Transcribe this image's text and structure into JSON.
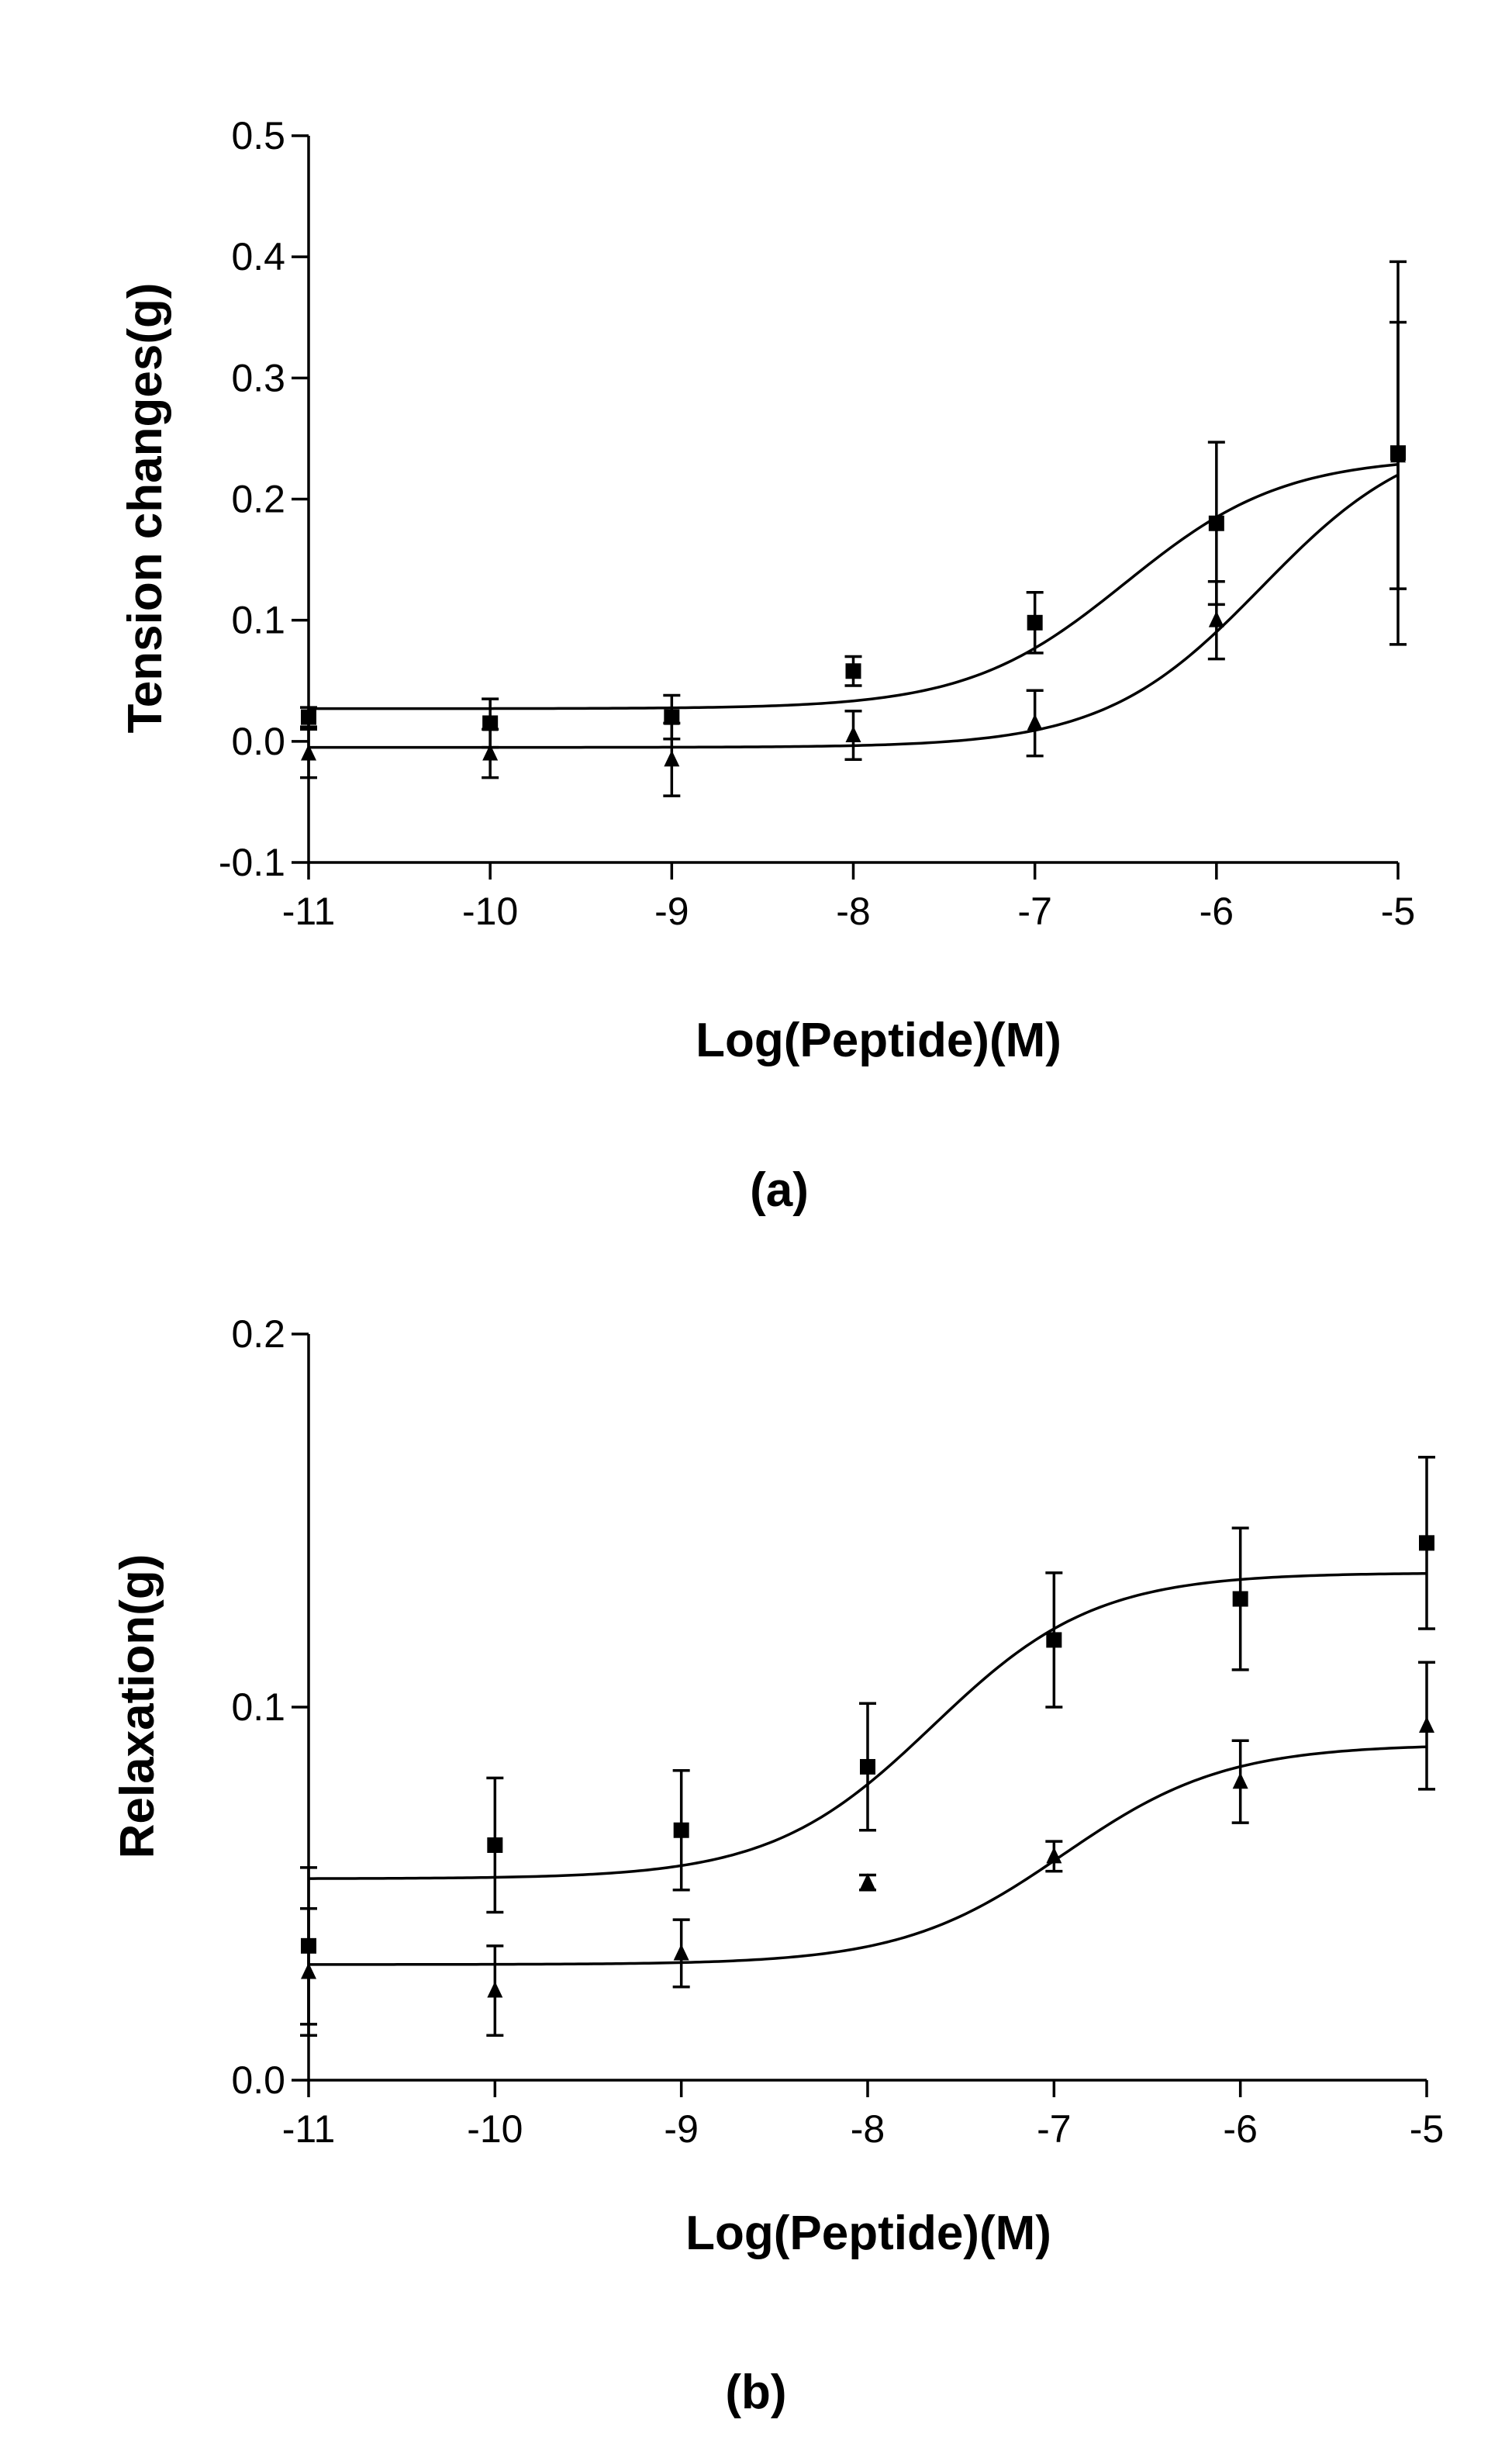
{
  "chart_data": [
    {
      "type": "scatter",
      "panel_label": "(a)",
      "xlabel": "Log(Peptide)(M)",
      "ylabel": "Tension changes(g)",
      "xlim": [
        -11,
        -5
      ],
      "ylim": [
        -0.1,
        0.5
      ],
      "xticks": [
        -11,
        -10,
        -9,
        -8,
        -7,
        -6,
        -5
      ],
      "xtick_labels": [
        "-11",
        "-10",
        "-9",
        "-8",
        "-7",
        "-6",
        "-5"
      ],
      "yticks": [
        -0.1,
        0.0,
        0.1,
        0.2,
        0.3,
        0.4,
        0.5
      ],
      "ytick_labels": [
        "-0.1",
        "0.0",
        "0.1",
        "0.2",
        "0.3",
        "0.4",
        "0.5"
      ],
      "grid": false,
      "series": [
        {
          "name": "square",
          "marker": "square",
          "x": [
            -11,
            -10,
            -9,
            -8,
            -7,
            -6,
            -5
          ],
          "y": [
            0.02,
            0.015,
            0.02,
            0.058,
            0.098,
            0.18,
            0.238
          ],
          "err": [
            0.008,
            0.02,
            0.018,
            0.012,
            0.025,
            0.067,
            0.158
          ],
          "fit": {
            "bottom": 0.027,
            "top": 0.235,
            "logEC50": -6.5,
            "hill": 1.0
          }
        },
        {
          "name": "triangle",
          "marker": "triangle",
          "x": [
            -11,
            -10,
            -9,
            -8,
            -7,
            -6,
            -5
          ],
          "y": [
            -0.01,
            -0.01,
            -0.015,
            0.005,
            0.015,
            0.1,
            0.236
          ],
          "err": [
            0.02,
            0.02,
            0.03,
            0.02,
            0.027,
            0.032,
            0.11
          ],
          "fit": {
            "bottom": -0.005,
            "top": 0.26,
            "logEC50": -5.75,
            "hill": 1.0
          }
        }
      ]
    },
    {
      "type": "scatter",
      "panel_label": "(b)",
      "xlabel": "Log(Peptide)(M)",
      "ylabel": "Relaxation(g)",
      "xlim": [
        -11,
        -5
      ],
      "ylim": [
        0.0,
        0.2
      ],
      "xticks": [
        -11,
        -10,
        -9,
        -8,
        -7,
        -6,
        -5
      ],
      "xtick_labels": [
        "-11",
        "-10",
        "-9",
        "-8",
        "-7",
        "-6",
        "-5"
      ],
      "yticks": [
        0.0,
        0.1,
        0.2
      ],
      "ytick_labels": [
        "0.0",
        "0.1",
        "0.2"
      ],
      "grid": false,
      "series": [
        {
          "name": "square",
          "marker": "square",
          "x": [
            -11,
            -10,
            -9,
            -8,
            -7,
            -6,
            -5
          ],
          "y": [
            0.036,
            0.063,
            0.067,
            0.084,
            0.118,
            0.129,
            0.144
          ],
          "err": [
            0.021,
            0.018,
            0.016,
            0.017,
            0.018,
            0.019,
            0.023
          ],
          "fit": {
            "bottom": 0.054,
            "top": 0.136,
            "logEC50": -7.65,
            "hill": 1.0
          }
        },
        {
          "name": "triangle",
          "marker": "triangle",
          "x": [
            -11,
            -10,
            -9,
            -8,
            -7,
            -6,
            -5
          ],
          "y": [
            0.029,
            0.024,
            0.034,
            0.053,
            0.06,
            0.08,
            0.095
          ],
          "err": [
            0.017,
            0.012,
            0.009,
            0.002,
            0.004,
            0.011,
            0.017
          ],
          "fit": {
            "bottom": 0.031,
            "top": 0.09,
            "logEC50": -6.95,
            "hill": 1.0
          }
        }
      ]
    }
  ]
}
